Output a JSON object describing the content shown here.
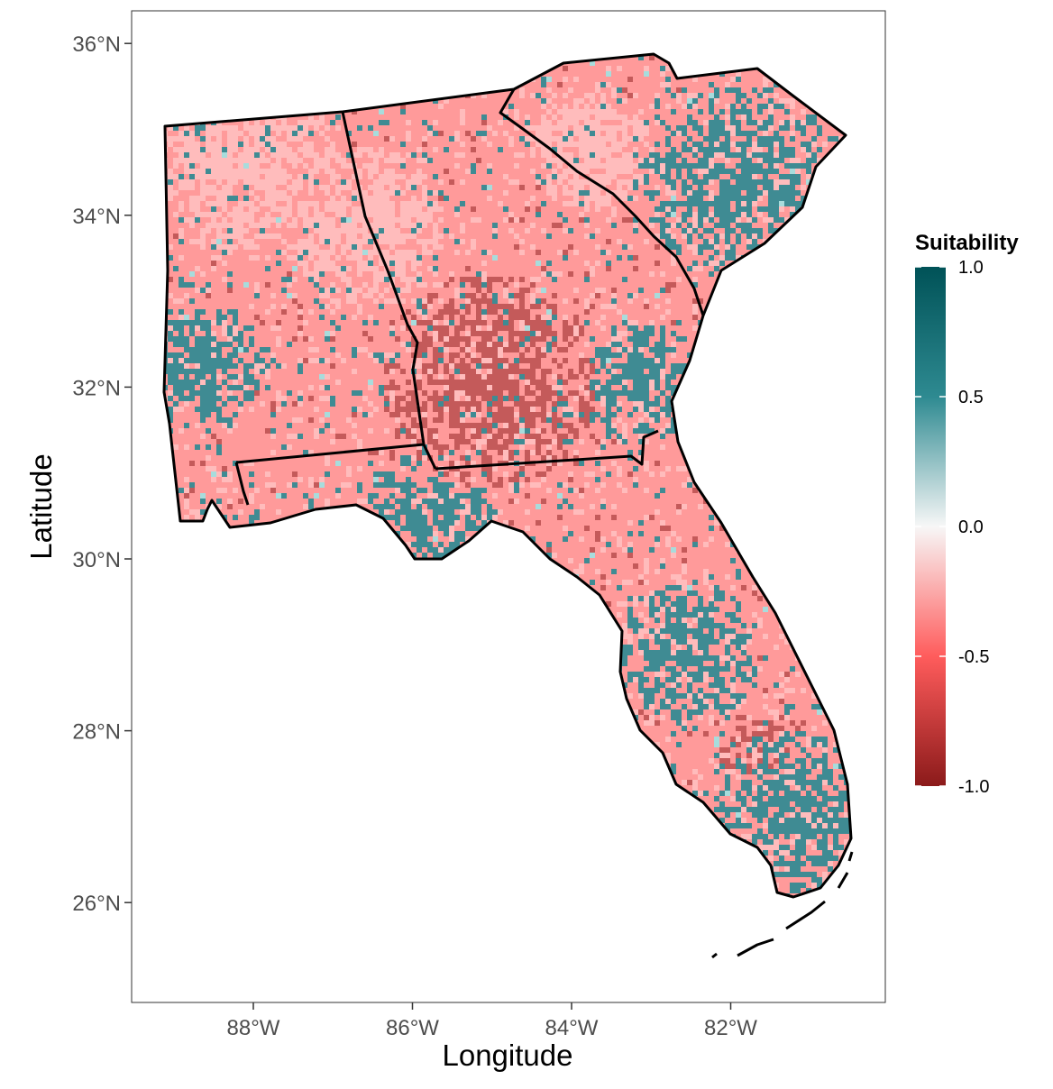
{
  "map": {
    "x_axis": {
      "title": "Longitude",
      "ticks": [
        "88°W",
        "86°W",
        "84°W",
        "82°W"
      ],
      "tick_values": [
        -88,
        -86,
        -84,
        -82
      ]
    },
    "y_axis": {
      "title": "Latitude",
      "ticks": [
        "36°N",
        "34°N",
        "32°N",
        "30°N",
        "28°N",
        "26°N"
      ],
      "tick_values": [
        36,
        34,
        32,
        30,
        28,
        26
      ]
    },
    "legend": {
      "title": "Suitability",
      "labels": [
        "1.0",
        "0.5",
        "0.0",
        "-0.5",
        "-1.0"
      ],
      "label_values": [
        1.0,
        0.5,
        0.0,
        -0.5,
        -1.0
      ],
      "range": [
        -1.0,
        1.0
      ],
      "colors": {
        "high": "#005257",
        "mid_high": "#2e8a91",
        "zero": "#f7f7f7",
        "mid_low": "#ff5c5c",
        "low": "#8b1a1a"
      }
    },
    "fill_colors": {
      "base": "#ff9a9a",
      "light": "#ffbcbc",
      "dark": "#c45a5a",
      "suitable": "#3f8b93",
      "faint": "#a8dcdc"
    }
  }
}
